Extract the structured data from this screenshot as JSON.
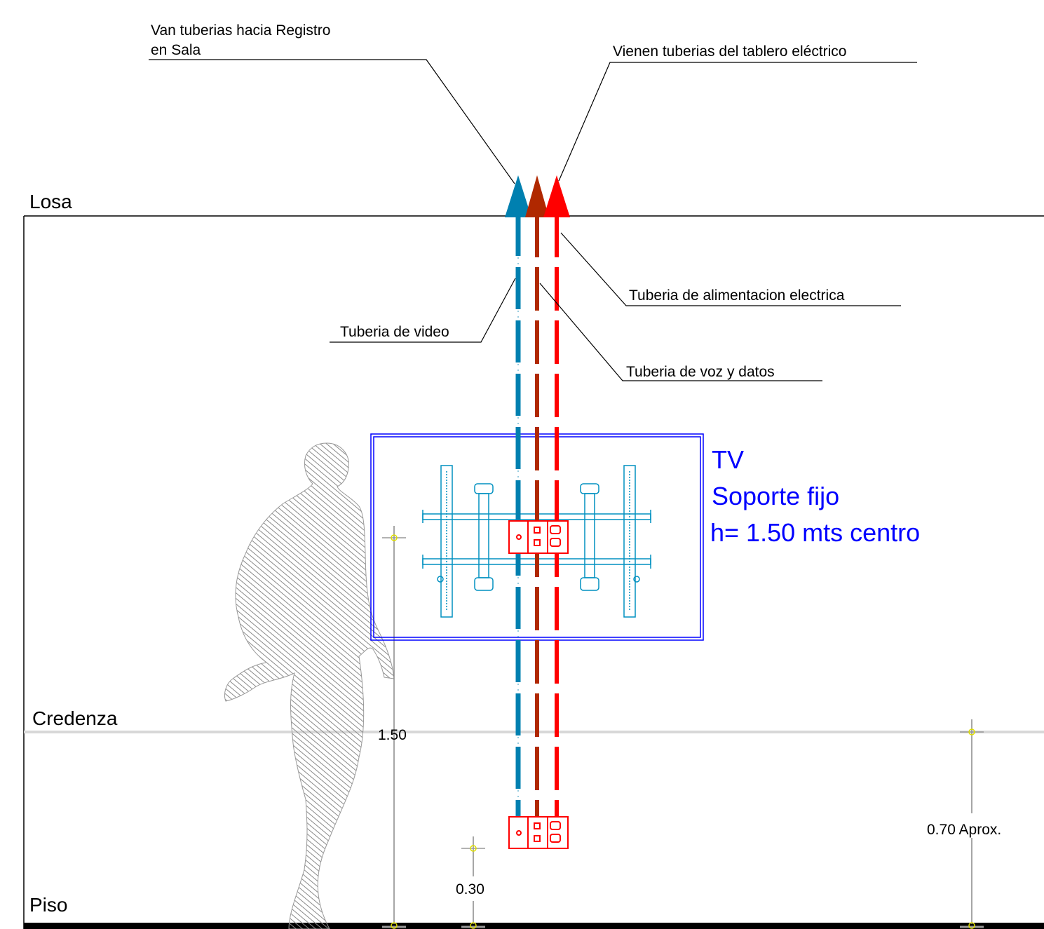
{
  "labels": {
    "van_tuberias_line1": "Van tuberias hacia Registro",
    "van_tuberias_line2": "en Sala",
    "vienen_tuberias": "Vienen tuberias del tablero eléctrico",
    "losa": "Losa",
    "tuberia_alimentacion": "Tuberia de alimentacion electrica",
    "tuberia_video": "Tuberia de video",
    "tuberia_voz_datos": "Tuberia de voz y datos",
    "tv_line1": "TV",
    "tv_line2": "Soporte fijo",
    "tv_line3": "h= 1.50 mts centro",
    "credenza": "Credenza",
    "piso": "Piso"
  },
  "dimensions": {
    "tv_height": "1.50",
    "outlet_height": "0.30",
    "credenza_height": "0.70 Aprox."
  },
  "colors": {
    "video_pipe": "#0080B0",
    "data_pipe": "#B02800",
    "power_pipe": "#FF0000",
    "tv_frame": "#0000FF",
    "mount": "#0090C0",
    "outlet": "#FF0000",
    "credenza_line": "#D8D8D8",
    "person_hatch": "#8A8A8A"
  }
}
